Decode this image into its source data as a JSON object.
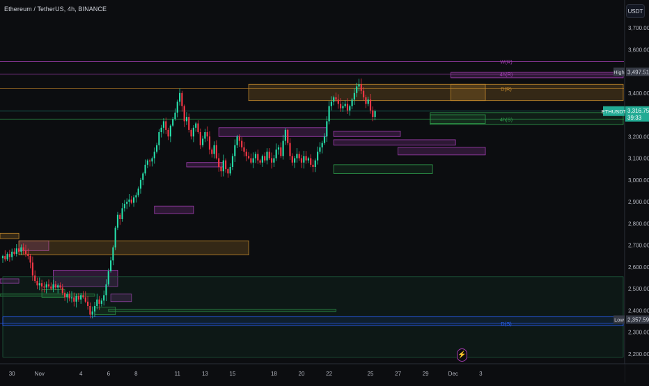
{
  "header": {
    "symbol_title": "Ethereum / TetherUS, 4h, BINANCE",
    "currency": "USDT",
    "bolt_icon": "lightning-bolt-icon"
  },
  "colors": {
    "background": "#0c0d10",
    "up": "#26d9a6",
    "down": "#f23645",
    "grid": "#161a22",
    "current_price": "#22ab94",
    "supply_zone_purple": "#a53fb5",
    "supply_zone_orange": "#c58a2c",
    "demand_zone_green": "#2f9e4c",
    "low_line": "#2962ff"
  },
  "chart_data": {
    "type": "candlestick",
    "title": "Ethereum / TetherUS, 4h, BINANCE",
    "xlabel": "",
    "ylabel": "",
    "ylim": [
      2180,
      3780
    ],
    "y_ticks": [
      2200,
      2300,
      2400,
      2500,
      2600,
      2700,
      2800,
      2900,
      3000,
      3100,
      3200,
      3300,
      3400,
      3500,
      3600,
      3700
    ],
    "y_tick_labels": [
      "2,200.00",
      "2,300.00",
      "2,400.00",
      "2,500.00",
      "2,600.00",
      "2,700.00",
      "2,800.00",
      "2,900.00",
      "3,000.00",
      "3,100.00",
      "3,200.00",
      "3,300.00",
      "3,400.00",
      "3,500.00",
      "3,600.00",
      "3,700.00"
    ],
    "x_ticks": [
      {
        "bar": 4,
        "label": "30"
      },
      {
        "bar": 16,
        "label": "Nov"
      },
      {
        "bar": 34,
        "label": "4"
      },
      {
        "bar": 46,
        "label": "6"
      },
      {
        "bar": 58,
        "label": "8"
      },
      {
        "bar": 76,
        "label": "11"
      },
      {
        "bar": 88,
        "label": "13"
      },
      {
        "bar": 100,
        "label": "15"
      },
      {
        "bar": 118,
        "label": "18"
      },
      {
        "bar": 130,
        "label": "20"
      },
      {
        "bar": 142,
        "label": "22"
      },
      {
        "bar": 160,
        "label": "25"
      },
      {
        "bar": 172,
        "label": "27"
      },
      {
        "bar": 184,
        "label": "29"
      },
      {
        "bar": 196,
        "label": "Dec"
      },
      {
        "bar": 208,
        "label": "3"
      }
    ],
    "grid": false,
    "closes": [
      2650,
      2635,
      2660,
      2645,
      2670,
      2660,
      2685,
      2670,
      2690,
      2675,
      2660,
      2650,
      2620,
      2560,
      2535,
      2515,
      2525,
      2510,
      2505,
      2520,
      2510,
      2500,
      2520,
      2505,
      2515,
      2505,
      2480,
      2460,
      2475,
      2455,
      2460,
      2440,
      2465,
      2450,
      2470,
      2460,
      2440,
      2420,
      2380,
      2395,
      2420,
      2450,
      2430,
      2445,
      2470,
      2520,
      2580,
      2630,
      2690,
      2780,
      2840,
      2820,
      2870,
      2890,
      2900,
      2910,
      2895,
      2920,
      2930,
      2960,
      3000,
      3030,
      3070,
      3090,
      3085,
      3100,
      3130,
      3160,
      3220,
      3240,
      3270,
      3230,
      3200,
      3250,
      3280,
      3310,
      3360,
      3400,
      3340,
      3270,
      3290,
      3230,
      3200,
      3240,
      3260,
      3220,
      3160,
      3190,
      3220,
      3200,
      3140,
      3120,
      3160,
      3100,
      3060,
      3040,
      3090,
      3050,
      3030,
      3060,
      3110,
      3160,
      3200,
      3180,
      3150,
      3130,
      3110,
      3100,
      3080,
      3100,
      3120,
      3090,
      3080,
      3110,
      3090,
      3130,
      3100,
      3080,
      3100,
      3140,
      3150,
      3110,
      3180,
      3230,
      3170,
      3110,
      3080,
      3100,
      3120,
      3100,
      3080,
      3110,
      3090,
      3100,
      3070,
      3060,
      3090,
      3130,
      3150,
      3170,
      3200,
      3270,
      3340,
      3360,
      3380,
      3370,
      3350,
      3330,
      3340,
      3350,
      3320,
      3340,
      3370,
      3400,
      3430,
      3440,
      3410,
      3380,
      3350,
      3370,
      3320,
      3290,
      3316
    ],
    "current_price": 3316.75,
    "current_price_label": "3,316.75",
    "countdown": "39:33",
    "symbol_tag": "ETHUSDT",
    "high": {
      "label": "High",
      "value_label": "3,497.51",
      "value": 3497.51
    },
    "low": {
      "label": "Low",
      "value_label": "2,357.59",
      "value": 2357.59
    },
    "levels": [
      {
        "name": "W(R)",
        "price": 3545,
        "color": "#a53fb5"
      },
      {
        "name": "4h(R)",
        "price": 3487,
        "color": "#a53fb5"
      },
      {
        "name": "D(R)",
        "price": 3420,
        "color": "#c58a2c"
      },
      {
        "name": "4h(S)",
        "price": 3280,
        "color": "#2f9e4c"
      },
      {
        "name": "D(S)",
        "price": 2340,
        "color": "#2962ff"
      }
    ],
    "zones": [
      {
        "x0": -3,
        "x1": 7,
        "top": 2755,
        "bot": 2730,
        "kind": "orange"
      },
      {
        "x0": -3,
        "x1": 7,
        "top": 2545,
        "bot": 2525,
        "kind": "purple"
      },
      {
        "x0": -3,
        "x1": 40,
        "top": 2475,
        "bot": 2465,
        "kind": "green"
      },
      {
        "x0": 7,
        "x1": 20,
        "top": 2720,
        "bot": 2675,
        "kind": "purple"
      },
      {
        "x0": 7,
        "x1": 107,
        "top": 2720,
        "bot": 2655,
        "kind": "orange"
      },
      {
        "x0": 17,
        "x1": 27,
        "top": 2495,
        "bot": 2460,
        "kind": "green"
      },
      {
        "x0": 22,
        "x1": 50,
        "top": 2585,
        "bot": 2510,
        "kind": "purple"
      },
      {
        "x0": 40,
        "x1": 49,
        "top": 2415,
        "bot": 2380,
        "kind": "green"
      },
      {
        "x0": 47,
        "x1": 56,
        "top": 2475,
        "bot": 2440,
        "kind": "purple"
      },
      {
        "x0": 46,
        "x1": 145,
        "top": 2405,
        "bot": 2395,
        "kind": "green"
      },
      {
        "x0": 66,
        "x1": 83,
        "top": 2880,
        "bot": 2845,
        "kind": "purple"
      },
      {
        "x0": 80,
        "x1": 96,
        "top": 3080,
        "bot": 3060,
        "kind": "purple"
      },
      {
        "x0": 94,
        "x1": 141,
        "top": 3240,
        "bot": 3200,
        "kind": "purple"
      },
      {
        "x0": 107,
        "x1": 210,
        "top": 3440,
        "bot": 3365,
        "kind": "orange"
      },
      {
        "x0": 144,
        "x1": 173,
        "top": 3225,
        "bot": 3200,
        "kind": "purple"
      },
      {
        "x0": 144,
        "x1": 197,
        "top": 3185,
        "bot": 3160,
        "kind": "purple"
      },
      {
        "x0": 172,
        "x1": 210,
        "top": 3150,
        "bot": 3115,
        "kind": "purple"
      },
      {
        "x0": 144,
        "x1": 187,
        "top": 3070,
        "bot": 3030,
        "kind": "green"
      },
      {
        "x0": 186,
        "x1": 210,
        "top": 3300,
        "bot": 3260,
        "kind": "green"
      },
      {
        "x0": 195,
        "x1": 270,
        "top": 3495,
        "bot": 3470,
        "kind": "purple"
      },
      {
        "x0": 195,
        "x1": 270,
        "top": 3440,
        "bot": 3365,
        "kind": "orange"
      },
      {
        "x0": 186,
        "x1": 270,
        "top": 3310,
        "bot": 3255,
        "kind": "green"
      },
      {
        "x0": 0,
        "x1": 270,
        "top": 2555,
        "bot": 2185,
        "kind": "darkgreen"
      },
      {
        "x0": 0,
        "x1": 270,
        "top": 2370,
        "bot": 2330,
        "kind": "blue"
      }
    ]
  }
}
